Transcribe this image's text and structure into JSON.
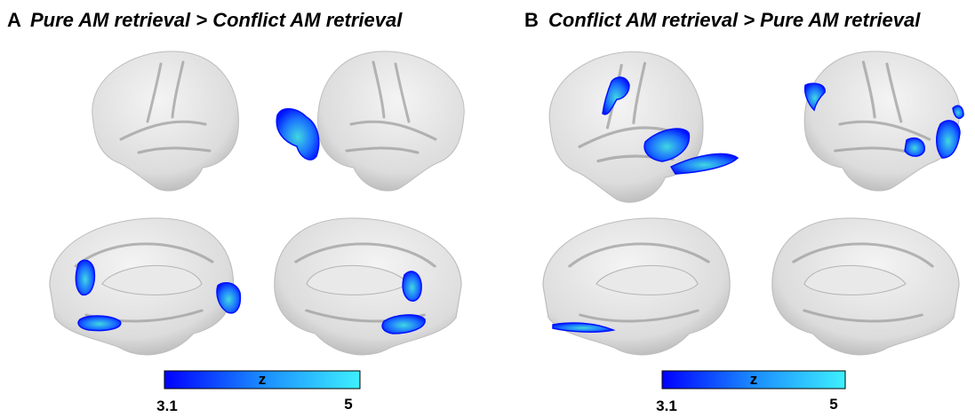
{
  "panels": [
    {
      "label": "A",
      "title": "Pure AM retrieval > Conflict AM retrieval",
      "colorbar": {
        "label": "z",
        "min": "3.1",
        "max": "5"
      }
    },
    {
      "label": "B",
      "title": "Conflict AM retrieval > Pure AM retrieval",
      "colorbar": {
        "label": "z",
        "min": "3.1",
        "max": "5"
      }
    }
  ]
}
